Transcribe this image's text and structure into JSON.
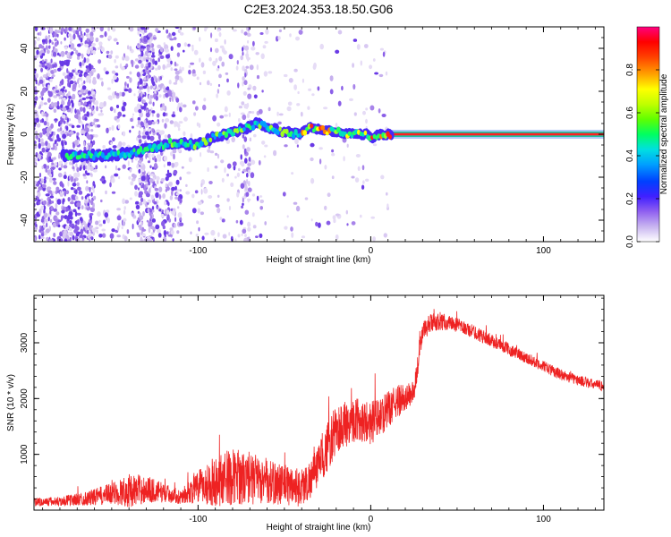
{
  "title": "C2E3.2024.353.18.50.G06",
  "colors": {
    "snr_line": "#ee2222",
    "axis": "#000000"
  },
  "chart_data": [
    {
      "type": "heatmap",
      "name": "spectrogram",
      "xlabel": "Height of straight line (km)",
      "ylabel": "Frequency (Hz)",
      "xlim": [
        -195,
        135
      ],
      "ylim": [
        -50,
        50
      ],
      "xticks": [
        -100,
        0,
        100
      ],
      "yticks": [
        -40,
        -20,
        0,
        20,
        40
      ],
      "colorbar": {
        "label": "Normalized spectral amplitude",
        "ticks": [
          0.0,
          0.2,
          0.4,
          0.6,
          0.8
        ],
        "range": [
          0,
          1
        ],
        "colormap": [
          "#ffffff",
          "#c8b4f0",
          "#9060f0",
          "#4020ff",
          "#0040ff",
          "#00a0ff",
          "#00e0e0",
          "#00ff60",
          "#60ff00",
          "#c0ff00",
          "#ffff00",
          "#ffa000",
          "#ff4000",
          "#ff0000",
          "#ff0080"
        ]
      },
      "ridge": {
        "x": [
          -175,
          -160,
          -140,
          -125,
          -115,
          -100,
          -90,
          -80,
          -72,
          -66,
          -60,
          -50,
          -42,
          -35,
          -28,
          -20,
          -10,
          -2,
          0,
          5,
          10,
          40,
          80,
          120,
          135
        ],
        "y": [
          -10,
          -10,
          -9,
          -6,
          -4,
          -5,
          -1,
          1,
          3,
          5,
          3,
          1,
          0,
          3,
          2,
          1,
          0,
          0,
          -2,
          0,
          0,
          0,
          0,
          0,
          0
        ]
      }
    },
    {
      "type": "line",
      "name": "snr",
      "xlabel": "Height of straight line (km)",
      "ylabel": "SNR (10 * v/v)",
      "xlim": [
        -195,
        135
      ],
      "ylim": [
        0,
        3850
      ],
      "xticks": [
        -100,
        0,
        100
      ],
      "yticks": [
        1000,
        2000,
        3000
      ],
      "envelope": {
        "x": [
          -195,
          -180,
          -165,
          -150,
          -140,
          -130,
          -120,
          -110,
          -100,
          -90,
          -85,
          -80,
          -70,
          -60,
          -50,
          -40,
          -35,
          -30,
          -25,
          -20,
          -15,
          -10,
          -5,
          0,
          5,
          10,
          15,
          20,
          25,
          28,
          30,
          35,
          40,
          45,
          50,
          60,
          70,
          80,
          90,
          100,
          110,
          120,
          130,
          135
        ],
        "base": [
          120,
          130,
          170,
          230,
          260,
          300,
          260,
          200,
          320,
          380,
          420,
          450,
          420,
          380,
          350,
          300,
          450,
          700,
          1000,
          1300,
          1400,
          1500,
          1500,
          1450,
          1550,
          1700,
          1850,
          1950,
          2050,
          2700,
          3150,
          3300,
          3330,
          3320,
          3280,
          3150,
          3000,
          2850,
          2700,
          2550,
          2400,
          2300,
          2220,
          2200
        ],
        "amp": [
          150,
          180,
          250,
          400,
          600,
          500,
          350,
          250,
          600,
          900,
          1000,
          1000,
          900,
          800,
          750,
          700,
          700,
          750,
          900,
          900,
          850,
          800,
          800,
          800,
          700,
          650,
          600,
          500,
          400,
          400,
          350,
          350,
          300,
          300,
          250,
          250,
          230,
          220,
          200,
          200,
          200,
          190,
          180,
          180
        ]
      }
    }
  ]
}
